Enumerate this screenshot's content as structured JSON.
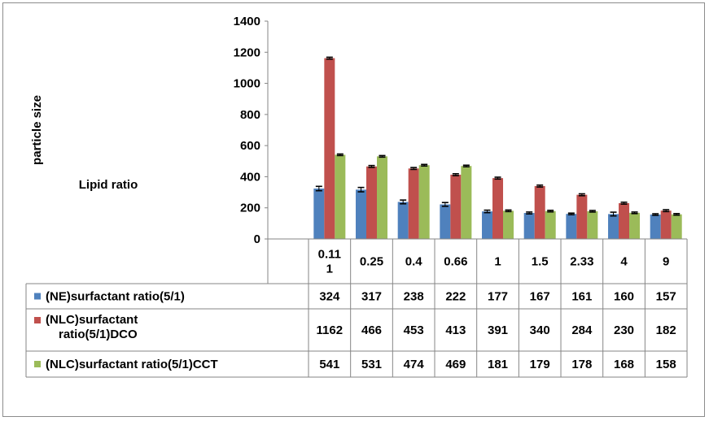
{
  "chart_data": {
    "type": "bar",
    "title": "",
    "xlabel": "",
    "ylabel": "particle size",
    "side_label": "Lipid ratio",
    "ylim": [
      0,
      1400
    ],
    "yticks": [
      0,
      200,
      400,
      600,
      800,
      1000,
      1200,
      1400
    ],
    "grid": false,
    "error_bars": true,
    "legend_placement": "data-table",
    "categories": [
      "0.11\n1",
      "0.25",
      "0.4",
      "0.66",
      "1",
      "1.5",
      "2.33",
      "4",
      "9"
    ],
    "series": [
      {
        "name": "(NE)surfactant ratio(5/1)",
        "legend_lines": [
          "(NE)surfactant ratio(5/1)"
        ],
        "color": "#4f81bd",
        "values": [
          324,
          317,
          238,
          222,
          177,
          167,
          161,
          160,
          157
        ],
        "errors": [
          14,
          14,
          12,
          12,
          8,
          6,
          5,
          12,
          5
        ]
      },
      {
        "name": "(NLC)surfactant ratio(5/1)DCO",
        "legend_lines": [
          "(NLC)surfactant",
          "ratio(5/1)DCO"
        ],
        "color": "#c0504d",
        "values": [
          1162,
          466,
          453,
          413,
          391,
          340,
          284,
          230,
          182
        ],
        "errors": [
          6,
          6,
          6,
          6,
          6,
          6,
          6,
          6,
          6
        ]
      },
      {
        "name": "(NLC)surfactant ratio(5/1)CCT",
        "legend_lines": [
          "(NLC)surfactant ratio(5/1)CCT"
        ],
        "color": "#9bbb59",
        "values": [
          541,
          531,
          474,
          469,
          181,
          179,
          178,
          168,
          158
        ],
        "errors": [
          5,
          5,
          5,
          5,
          5,
          5,
          5,
          5,
          5
        ]
      }
    ]
  }
}
